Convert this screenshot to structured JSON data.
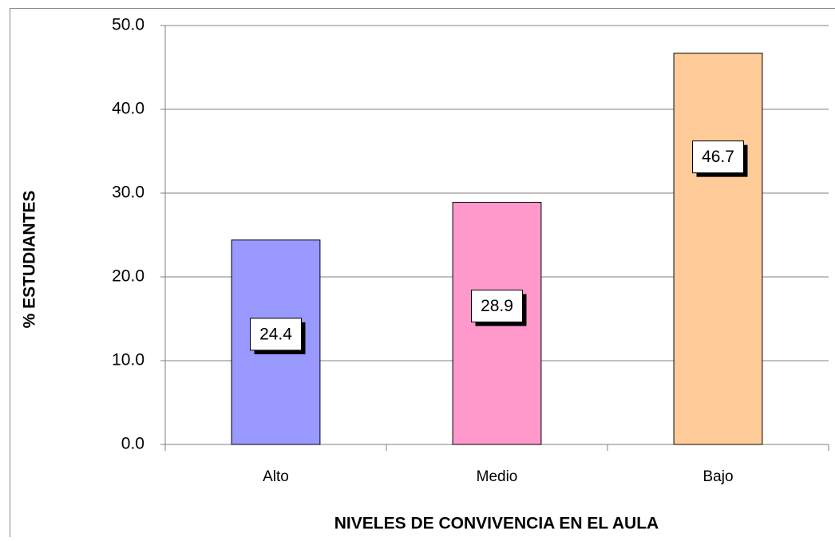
{
  "chart_data": {
    "type": "bar",
    "categories": [
      "Alto",
      "Medio",
      "Bajo"
    ],
    "values": [
      24.4,
      28.9,
      46.7
    ],
    "colors": [
      "#9999ff",
      "#ff99cc",
      "#ffcc99"
    ],
    "xlabel": "NIVELES DE CONVIVENCIA EN EL AULA",
    "ylabel": "% ESTUDIANTES",
    "ylim": [
      0,
      50
    ],
    "yticks": [
      {
        "value": 0,
        "label": "0.0"
      },
      {
        "value": 10,
        "label": "10.0"
      },
      {
        "value": 20,
        "label": "20.0"
      },
      {
        "value": 30,
        "label": "30.0"
      },
      {
        "value": 40,
        "label": "40.0"
      },
      {
        "value": 50,
        "label": "50.0"
      }
    ],
    "grid": true
  }
}
